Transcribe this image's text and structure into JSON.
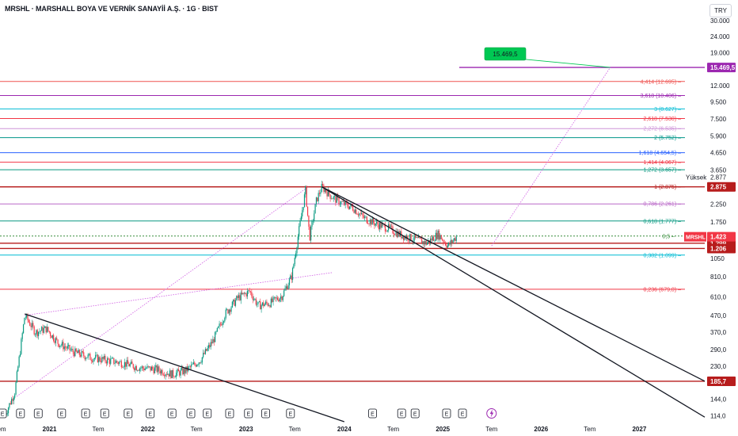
{
  "header": {
    "title": "MRSHL · MARSHALL BOYA VE VERNİK SANAYİİ A.Ş. · 1G · BIST",
    "currency": "TRY"
  },
  "colors": {
    "candle_up": "#089981",
    "candle_down": "#f23645",
    "trendline": "#131722",
    "target": "#9c27b0",
    "support": "#b71c1c",
    "target_box": "#00c853"
  },
  "chart_data": {
    "type": "candlestick",
    "symbol": "MRSHL",
    "timeframe": "1G",
    "scale": "log",
    "y_range": [
      105,
      32000
    ],
    "y_ticks": [
      {
        "value": 30000,
        "label": "30.000"
      },
      {
        "value": 24000,
        "label": "24.000"
      },
      {
        "value": 19000,
        "label": "19.000"
      },
      {
        "value": 12000,
        "label": "12.000"
      },
      {
        "value": 9500,
        "label": "9.500"
      },
      {
        "value": 7500,
        "label": "7.500"
      },
      {
        "value": 5900,
        "label": "5.900"
      },
      {
        "value": 4650,
        "label": "4.650"
      },
      {
        "value": 3650,
        "label": "3.650"
      },
      {
        "value": 2250,
        "label": "2.250"
      },
      {
        "value": 1750,
        "label": "1.750"
      },
      {
        "value": 1050,
        "label": "1050"
      },
      {
        "value": 810,
        "label": "810,0"
      },
      {
        "value": 610,
        "label": "610,0"
      },
      {
        "value": 470,
        "label": "470,0"
      },
      {
        "value": 370,
        "label": "370,0"
      },
      {
        "value": 290,
        "label": "290,0"
      },
      {
        "value": 230,
        "label": "230,0"
      },
      {
        "value": 144,
        "label": "144,0"
      },
      {
        "value": 114,
        "label": "114,0"
      }
    ],
    "x_range": [
      "2020-07-01",
      "2027-09-01"
    ],
    "x_ticks": [
      {
        "date": "2020-07-01",
        "label": "Tem"
      },
      {
        "date": "2021-01-01",
        "label": "2021"
      },
      {
        "date": "2021-07-01",
        "label": "Tem"
      },
      {
        "date": "2022-01-01",
        "label": "2022"
      },
      {
        "date": "2022-07-01",
        "label": "Tem"
      },
      {
        "date": "2023-01-01",
        "label": "2023"
      },
      {
        "date": "2023-07-01",
        "label": "Tem"
      },
      {
        "date": "2024-01-01",
        "label": "2024"
      },
      {
        "date": "2024-07-01",
        "label": "Tem"
      },
      {
        "date": "2025-01-01",
        "label": "2025"
      },
      {
        "date": "2025-07-01",
        "label": "Tem"
      },
      {
        "date": "2026-01-01",
        "label": "2026"
      },
      {
        "date": "2026-07-01",
        "label": "Tem"
      },
      {
        "date": "2027-01-01",
        "label": "2027"
      }
    ],
    "price_path": [
      {
        "date": "2020-07-20",
        "value": 116
      },
      {
        "date": "2020-08-25",
        "value": 160
      },
      {
        "date": "2020-10-01",
        "value": 470
      },
      {
        "date": "2020-11-10",
        "value": 370
      },
      {
        "date": "2020-12-20",
        "value": 390
      },
      {
        "date": "2021-02-01",
        "value": 320
      },
      {
        "date": "2021-04-01",
        "value": 280
      },
      {
        "date": "2021-06-01",
        "value": 260
      },
      {
        "date": "2021-08-01",
        "value": 250
      },
      {
        "date": "2021-10-01",
        "value": 240
      },
      {
        "date": "2021-12-01",
        "value": 225
      },
      {
        "date": "2022-02-01",
        "value": 220
      },
      {
        "date": "2022-04-01",
        "value": 205
      },
      {
        "date": "2022-05-20",
        "value": 215
      },
      {
        "date": "2022-07-15",
        "value": 250
      },
      {
        "date": "2022-09-01",
        "value": 330
      },
      {
        "date": "2022-10-15",
        "value": 480
      },
      {
        "date": "2022-12-01",
        "value": 600
      },
      {
        "date": "2023-01-15",
        "value": 660
      },
      {
        "date": "2023-02-15",
        "value": 540
      },
      {
        "date": "2023-04-01",
        "value": 560
      },
      {
        "date": "2023-05-15",
        "value": 620
      },
      {
        "date": "2023-06-20",
        "value": 820
      },
      {
        "date": "2023-07-15",
        "value": 1500
      },
      {
        "date": "2023-08-10",
        "value": 2750
      },
      {
        "date": "2023-08-25",
        "value": 1400
      },
      {
        "date": "2023-09-20",
        "value": 2400
      },
      {
        "date": "2023-10-10",
        "value": 2875
      },
      {
        "date": "2023-11-15",
        "value": 2500
      },
      {
        "date": "2023-12-20",
        "value": 2300
      },
      {
        "date": "2024-02-01",
        "value": 2150
      },
      {
        "date": "2024-03-15",
        "value": 1850
      },
      {
        "date": "2024-05-01",
        "value": 1700
      },
      {
        "date": "2024-06-15",
        "value": 1600
      },
      {
        "date": "2024-08-01",
        "value": 1450
      },
      {
        "date": "2024-09-15",
        "value": 1380
      },
      {
        "date": "2024-11-01",
        "value": 1300
      },
      {
        "date": "2024-12-15",
        "value": 1480
      },
      {
        "date": "2025-01-20",
        "value": 1250
      },
      {
        "date": "2025-02-20",
        "value": 1423
      }
    ],
    "last_price": {
      "value": 1423,
      "label": "1.423",
      "symbol": "MRSHL"
    },
    "high_marker": {
      "value": 2877,
      "caption": "Yüksek",
      "label": "2.877"
    },
    "fib_levels": [
      {
        "value": 12695,
        "label": "4,414 (12.695)",
        "color": "#ef5350"
      },
      {
        "value": 10406,
        "label": "3,618 (10.406)",
        "color": "#9c27b0"
      },
      {
        "value": 8627,
        "label": "3 (8.627)",
        "color": "#00bcd4"
      },
      {
        "value": 7530,
        "label": "2,618 (7.530)",
        "color": "#f23645"
      },
      {
        "value": 6535,
        "label": "2,272 (6.535)",
        "color": "#ce93d8"
      },
      {
        "value": 5752,
        "label": "2 (5.752)",
        "color": "#009688"
      },
      {
        "value": 4654.5,
        "label": "1,618 (4.654,5)",
        "color": "#2962ff"
      },
      {
        "value": 4067,
        "label": "1,414 (4.067)",
        "color": "#f23645"
      },
      {
        "value": 3657,
        "label": "1,272 (3.657)",
        "color": "#089981"
      },
      {
        "value": 2875,
        "label": "1 (2.875)",
        "color": "#b71c1c"
      },
      {
        "value": 2261,
        "label": "0,786 (2.261)",
        "color": "#ba68c8"
      },
      {
        "value": 1777,
        "label": "0,618 (1.777)",
        "color": "#089981"
      },
      {
        "value": 1437.5,
        "label": "0,5",
        "color": "#388e3c"
      },
      {
        "value": 1099,
        "label": "0,382 (1.099)",
        "color": "#00bcd4"
      },
      {
        "value": 679,
        "label": "0,236 (679,0)",
        "color": "#f23645"
      }
    ],
    "price_tags": [
      {
        "value": 15469.5,
        "label": "15.469,5",
        "color": "#9c27b0"
      },
      {
        "value": 2875,
        "label": "2.875",
        "color": "#b71c1c"
      },
      {
        "value": 1299,
        "label": "1.299",
        "color": "#b71c1c"
      },
      {
        "value": 1206,
        "label": "1.206",
        "color": "#b71c1c"
      },
      {
        "value": 185.7,
        "label": "185,7",
        "color": "#b71c1c"
      }
    ],
    "support_lines": [
      {
        "value": 2875,
        "color": "#b71c1c"
      },
      {
        "value": 1299,
        "color": "#b71c1c"
      },
      {
        "value": 1206,
        "color": "#b71c1c"
      },
      {
        "value": 185.7,
        "color": "#b71c1c"
      }
    ],
    "target": {
      "value": 15469.5,
      "label": "15.469,5",
      "date": "2026-09-15"
    },
    "trendlines": [
      {
        "from": {
          "date": "2020-10-01",
          "value": 480
        },
        "to": {
          "date": "2024-01-01",
          "value": 105
        }
      },
      {
        "from": {
          "date": "2023-10-10",
          "value": 2870
        },
        "to": {
          "date": "2027-09-01",
          "value": 186
        }
      },
      {
        "from": {
          "date": "2023-10-10",
          "value": 2870
        },
        "to": {
          "date": "2027-09-01",
          "value": 112
        }
      }
    ],
    "projection_lines": [
      {
        "from": {
          "date": "2020-09-01",
          "value": 150
        },
        "to": {
          "date": "2023-08-20",
          "value": 2875
        }
      },
      {
        "from": {
          "date": "2020-10-01",
          "value": 470
        },
        "to": {
          "date": "2023-11-20",
          "value": 860
        }
      },
      {
        "from": {
          "date": "2025-07-01",
          "value": 1250
        },
        "to": {
          "date": "2026-09-15",
          "value": 15469.5
        }
      }
    ],
    "earnings_markers": [
      "2020-07-10",
      "2020-09-15",
      "2020-11-20",
      "2021-02-15",
      "2021-05-15",
      "2021-07-25",
      "2021-10-20",
      "2022-01-10",
      "2022-04-01",
      "2022-06-10",
      "2022-08-10",
      "2022-11-01",
      "2023-01-10",
      "2023-03-15",
      "2023-06-15",
      "2024-04-15",
      "2024-08-01",
      "2024-09-20",
      "2025-01-15",
      "2025-03-15"
    ],
    "dividend_marker": {
      "date": "2025-07-01"
    }
  }
}
